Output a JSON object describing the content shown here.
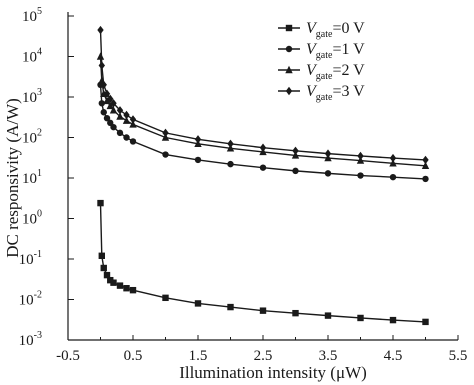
{
  "chart_data": {
    "type": "line",
    "xlabel": "Illumination intensity (μW)",
    "ylabel": "DC responsivity (A/W)",
    "xlim": [
      -0.5,
      5.5
    ],
    "ylim_log10": [
      -3,
      5
    ],
    "y_scale": "log",
    "x_ticks": [
      -0.5,
      0.5,
      1.5,
      2.5,
      3.5,
      4.5,
      5.5
    ],
    "x_tick_labels": [
      "-0.5",
      "0.5",
      "1.5",
      "2.5",
      "3.5",
      "4.5",
      "5.5"
    ],
    "y_tick_exponents": [
      -3,
      -2,
      -1,
      0,
      1,
      2,
      3,
      4,
      5
    ],
    "y_tick_base": "10",
    "legend_position": "top-right",
    "grid": false,
    "series": [
      {
        "name_prefix": "V",
        "name_sub": "gate",
        "name_suffix": "=0 V",
        "marker": "square",
        "x": [
          0.0,
          0.02,
          0.05,
          0.1,
          0.15,
          0.2,
          0.3,
          0.4,
          0.5,
          1.0,
          1.5,
          2.0,
          2.5,
          3.0,
          3.5,
          4.0,
          4.5,
          5.0
        ],
        "y": [
          2.4,
          0.12,
          0.06,
          0.04,
          0.03,
          0.026,
          0.022,
          0.019,
          0.017,
          0.011,
          0.008,
          0.0065,
          0.0053,
          0.0046,
          0.004,
          0.0035,
          0.0031,
          0.0028
        ]
      },
      {
        "name_prefix": "V",
        "name_sub": "gate",
        "name_suffix": "=1 V",
        "marker": "circle",
        "x": [
          0.0,
          0.02,
          0.05,
          0.1,
          0.15,
          0.2,
          0.3,
          0.4,
          0.5,
          1.0,
          1.5,
          2.0,
          2.5,
          3.0,
          3.5,
          4.0,
          4.5,
          5.0
        ],
        "y": [
          2000,
          700,
          420,
          300,
          230,
          180,
          130,
          100,
          80,
          38,
          28,
          22,
          18,
          15,
          13,
          11.5,
          10.5,
          9.5
        ]
      },
      {
        "name_prefix": "V",
        "name_sub": "gate",
        "name_suffix": "=2 V",
        "marker": "triangle",
        "x": [
          0.0,
          0.02,
          0.05,
          0.1,
          0.15,
          0.2,
          0.3,
          0.4,
          0.5,
          1.0,
          1.5,
          2.0,
          2.5,
          3.0,
          3.5,
          4.0,
          4.5,
          5.0
        ],
        "y": [
          10000,
          2500,
          1200,
          800,
          600,
          470,
          330,
          260,
          210,
          100,
          70,
          54,
          44,
          36,
          31,
          27,
          23,
          20
        ]
      },
      {
        "name_prefix": "V",
        "name_sub": "gate",
        "name_suffix": "=3 V",
        "marker": "diamond",
        "x": [
          0.0,
          0.02,
          0.05,
          0.1,
          0.15,
          0.2,
          0.3,
          0.4,
          0.5,
          1.0,
          1.5,
          2.0,
          2.5,
          3.0,
          3.5,
          4.0,
          4.5,
          5.0
        ],
        "y": [
          45000,
          6000,
          2000,
          1200,
          900,
          700,
          470,
          360,
          280,
          130,
          90,
          70,
          56,
          47,
          40,
          35,
          31,
          28
        ]
      }
    ]
  }
}
